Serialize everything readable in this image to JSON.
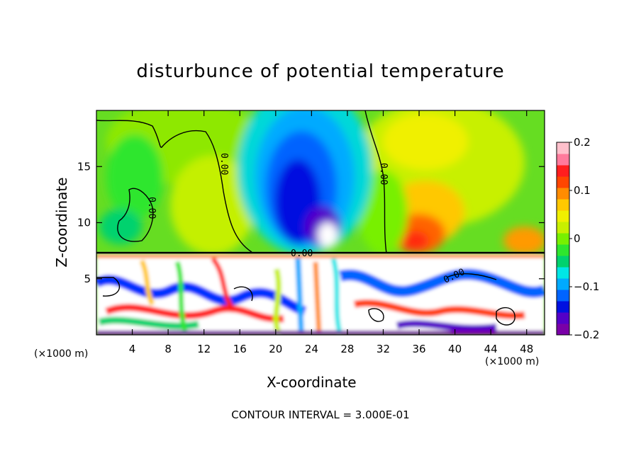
{
  "chart_data": {
    "type": "heatmap",
    "title": "disturbunce of potential temperature",
    "xlabel": "X-coordinate",
    "ylabel": "Z-coordinate",
    "x_unit": "(×1000 m)",
    "x_unit_right": "(×1000 m)",
    "contour_interval_text": "CONTOUR INTERVAL = 3.000E-01",
    "xlim": [
      0,
      50
    ],
    "ylim": [
      0,
      20
    ],
    "x_ticks": [
      4,
      8,
      12,
      16,
      20,
      24,
      28,
      32,
      36,
      40,
      44,
      48
    ],
    "y_ticks": [
      5,
      10,
      15
    ],
    "colorbar": {
      "range": [
        -0.2,
        0.2
      ],
      "ticks": [
        "0.2",
        "0.1",
        "0",
        "−0.1",
        "−0.2"
      ],
      "colors": [
        "#7a00a8",
        "#5400c8",
        "#0010e0",
        "#0064ff",
        "#00aaff",
        "#00e6e6",
        "#00d26e",
        "#2ee62e",
        "#78f000",
        "#c8f000",
        "#f0f000",
        "#ffc800",
        "#ff8c00",
        "#ff4600",
        "#ff1e1e",
        "#ff7a9c",
        "#ffc0cc"
      ]
    },
    "contour_labels": [
      "0.00",
      "0.00",
      "0.00",
      "0.00",
      "0.00"
    ],
    "features": [
      {
        "name": "cold-anomaly",
        "x": 25,
        "z": 12,
        "value": -0.2
      },
      {
        "name": "warm-anomaly",
        "x": 37,
        "z": 9,
        "value": 0.12
      },
      {
        "name": "turbulent-layer",
        "z_range": [
          0,
          7.3
        ]
      }
    ]
  }
}
